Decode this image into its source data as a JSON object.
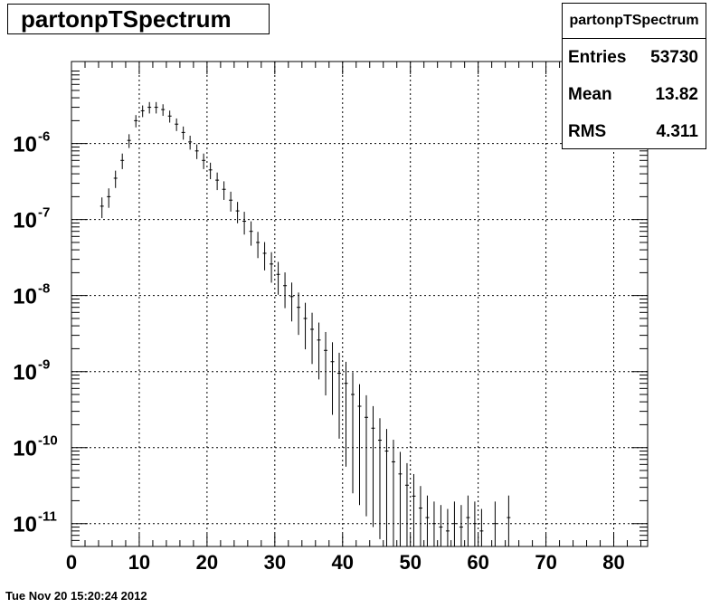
{
  "title": "partonpTSpectrum",
  "stats": {
    "name": "partonpTSpectrum",
    "rows": [
      {
        "label": "Entries",
        "value": "53730"
      },
      {
        "label": "Mean",
        "value": "13.82"
      },
      {
        "label": "RMS",
        "value": "4.311"
      }
    ]
  },
  "footer": "Tue Nov 20 15:20:24 2012",
  "chart_data": {
    "type": "scatter",
    "title": "partonpTSpectrum",
    "xlabel": "",
    "ylabel": "",
    "xlim": [
      0,
      85
    ],
    "ylim": [
      5e-12,
      1.2e-05
    ],
    "yscale": "log",
    "grid": true,
    "x_ticks": [
      0,
      10,
      20,
      30,
      40,
      50,
      60,
      70,
      80
    ],
    "y_ticks": [
      {
        "exp": -11,
        "label": "10",
        "sup": "-11"
      },
      {
        "exp": -10,
        "label": "10",
        "sup": "-10"
      },
      {
        "exp": -9,
        "label": "10",
        "sup": "-9"
      },
      {
        "exp": -8,
        "label": "10",
        "sup": "-8"
      },
      {
        "exp": -7,
        "label": "10",
        "sup": "-7"
      },
      {
        "exp": -6,
        "label": "10",
        "sup": "-6"
      }
    ],
    "series": [
      {
        "x": [
          4.5,
          5.5,
          6.5,
          7.5,
          8.5,
          9.5,
          10.5,
          11.5,
          12.5,
          13.5,
          14.5,
          15.5,
          16.5,
          17.5,
          18.5,
          19.5,
          20.5,
          21.5,
          22.5,
          23.5,
          24.5,
          25.5,
          26.5,
          27.5,
          28.5,
          29.5,
          30.5,
          31.5,
          32.5,
          33.5,
          34.5,
          35.5,
          36.5,
          37.5,
          38.5,
          39.5,
          40.5,
          41.5,
          42.5,
          43.5,
          44.5,
          45.5,
          46.5,
          47.5,
          48.5,
          49.5,
          50.5,
          51.5,
          52.5,
          53.5,
          54.5,
          55.5,
          56.5,
          57.5,
          58.5,
          59.5,
          60.5,
          62.5,
          64.5
        ],
        "y": [
          1.5e-07,
          2e-07,
          3.5e-07,
          6e-07,
          1.1e-06,
          2e-06,
          2.7e-06,
          3e-06,
          3e-06,
          2.8e-06,
          2.3e-06,
          1.8e-06,
          1.4e-06,
          1.05e-06,
          8e-07,
          6e-07,
          4.5e-07,
          3.3e-07,
          2.5e-07,
          1.8e-07,
          1.3e-07,
          9.5e-08,
          7e-08,
          5e-08,
          3.6e-08,
          2.6e-08,
          1.9e-08,
          1.35e-08,
          9.7e-09,
          7e-09,
          5e-09,
          3.6e-09,
          2.6e-09,
          1.9e-09,
          1.35e-09,
          9.5e-10,
          7e-10,
          5e-10,
          3.5e-10,
          2.5e-10,
          1.8e-10,
          1.25e-10,
          9e-11,
          6.5e-11,
          4.5e-11,
          3.2e-11,
          2.3e-11,
          1.6e-11,
          1.2e-11,
          1e-11,
          9e-12,
          8e-12,
          1e-11,
          9e-12,
          1.2e-11,
          1e-11,
          8e-12,
          1e-11,
          1.2e-11
        ]
      }
    ]
  }
}
